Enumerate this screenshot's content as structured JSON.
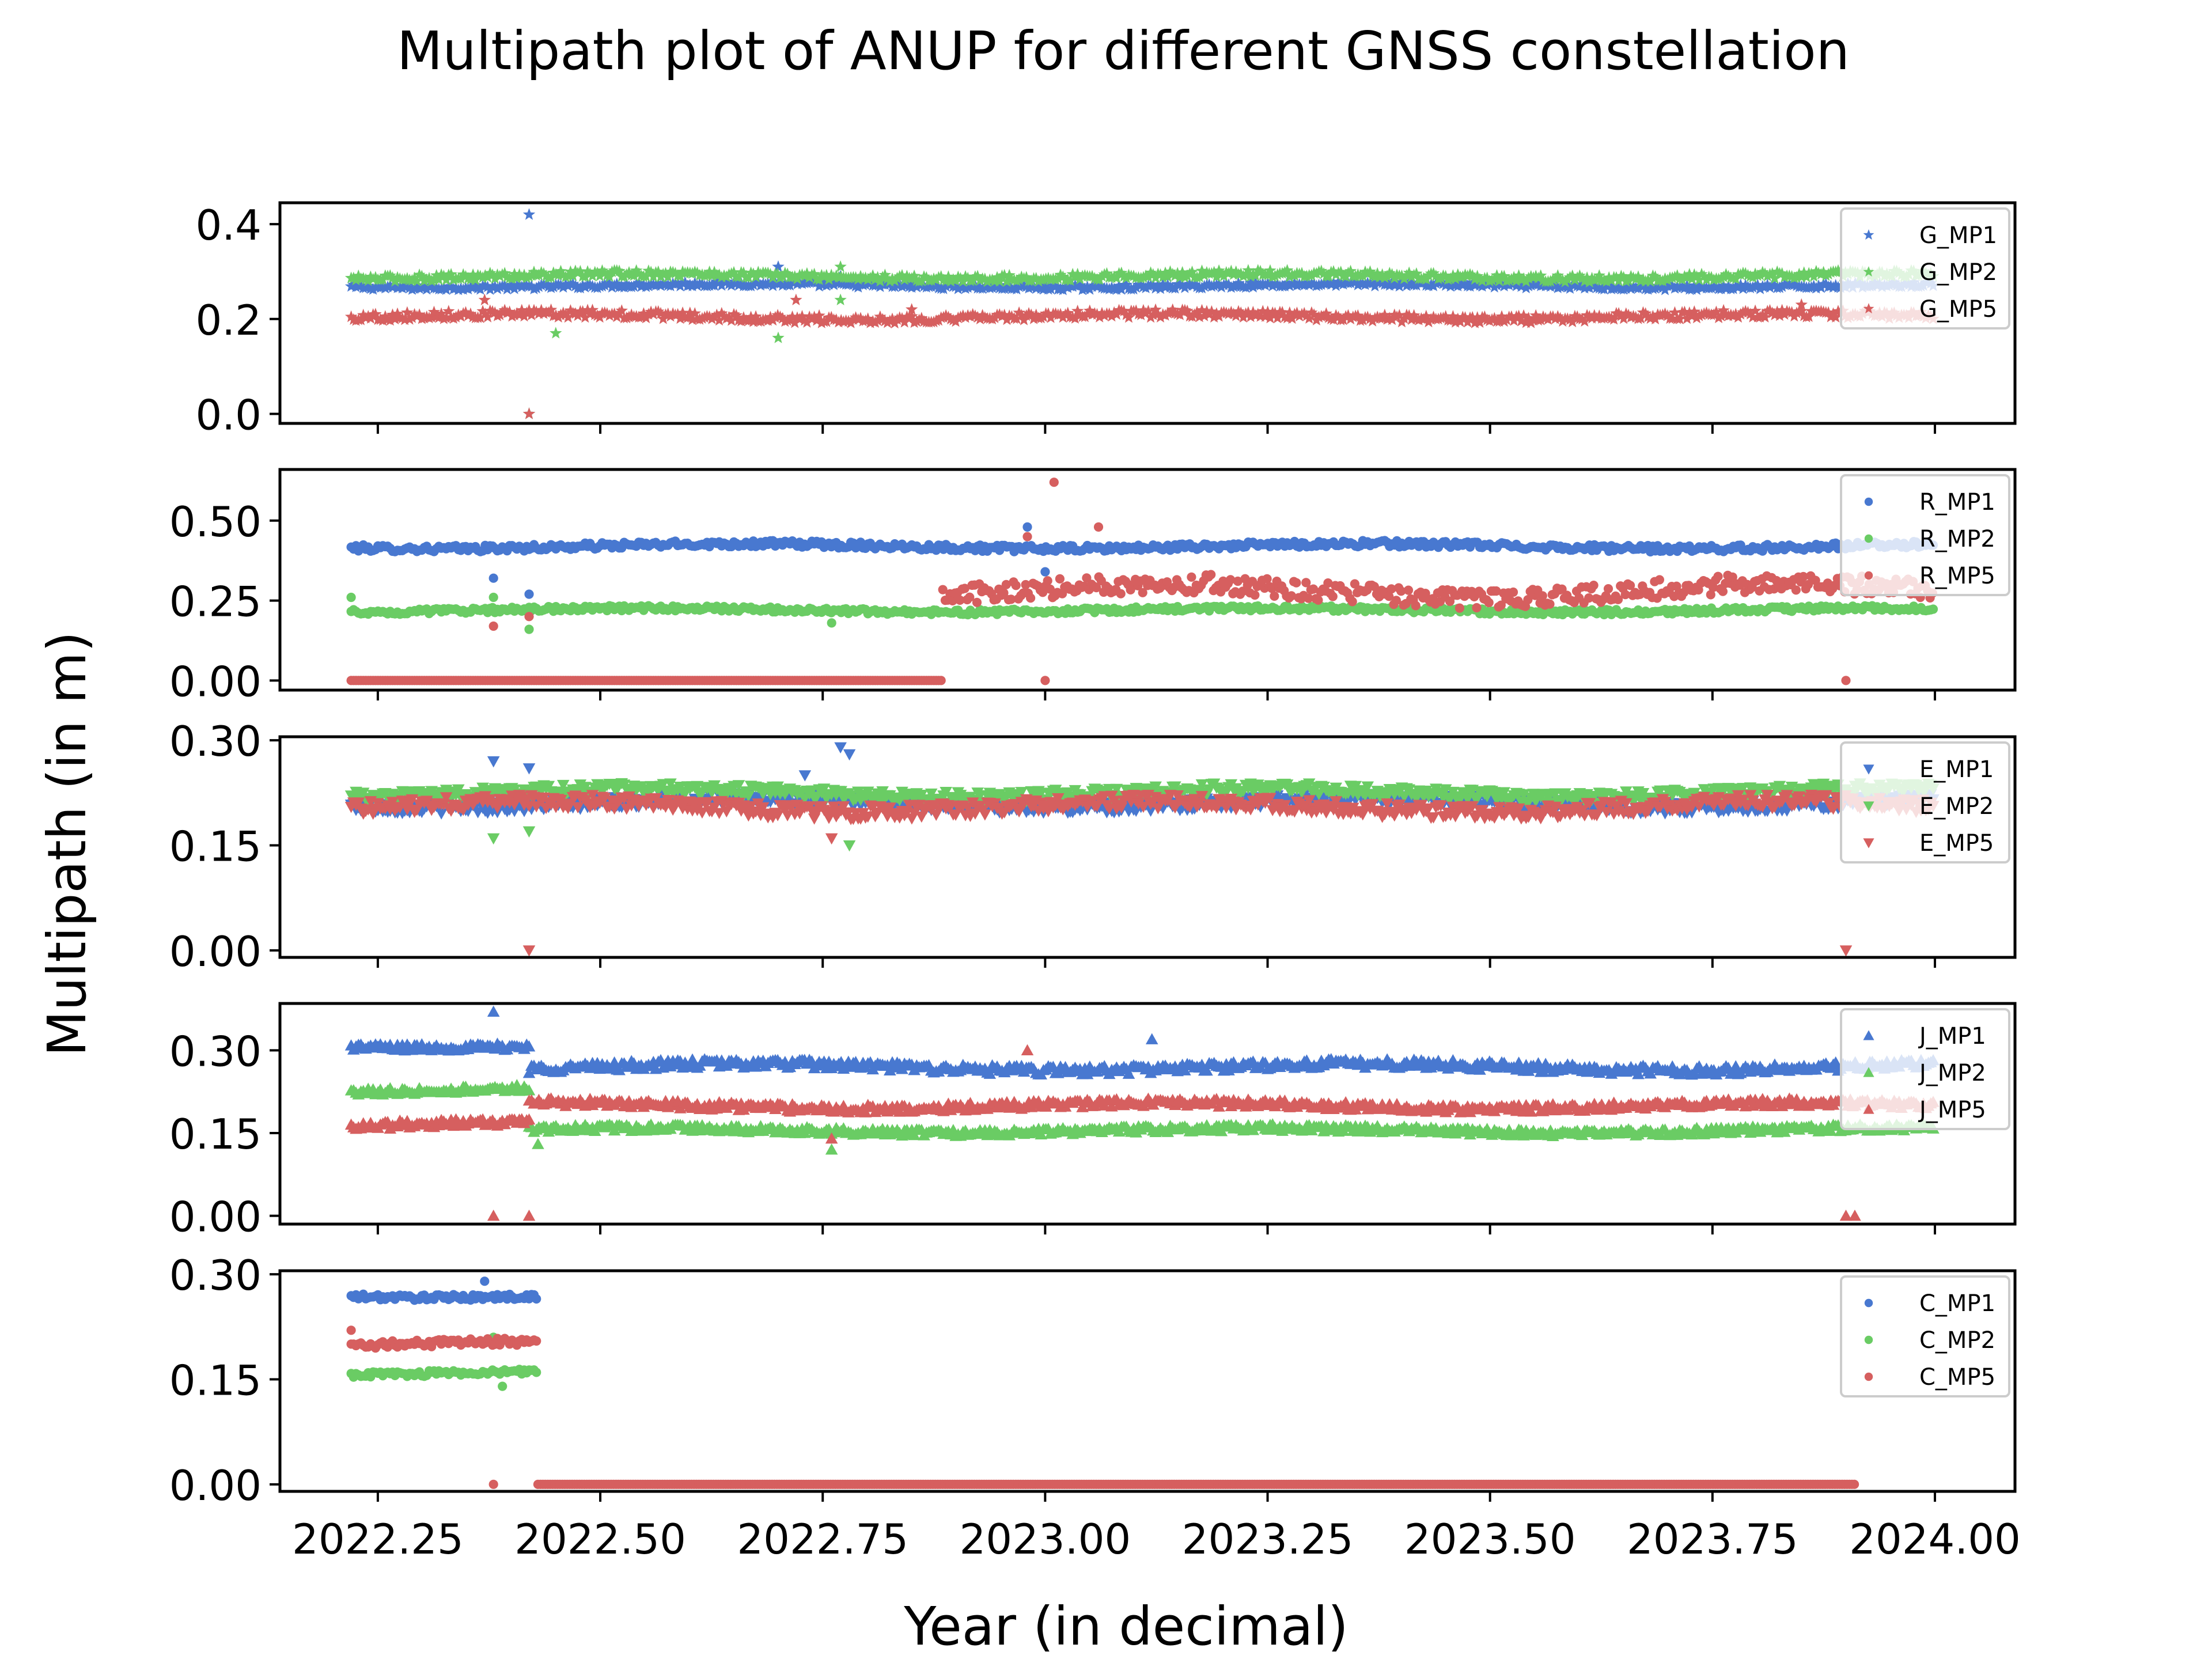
{
  "figure": {
    "title": "Multipath plot of ANUP for different GNSS constellation",
    "xlabel": "Year (in decimal)",
    "ylabel": "Multipath (in m)"
  },
  "colors": {
    "MP1": "#4878d0",
    "MP2": "#6acc64",
    "MP5": "#d65f5f"
  },
  "chart_data": [
    {
      "type": "scatter",
      "constellation": "G",
      "marker": "star",
      "xlim": [
        2022.14,
        2024.09
      ],
      "ylim": [
        -0.02,
        0.445
      ],
      "yticks": [
        0.0,
        0.2,
        0.4
      ],
      "ytick_labels": [
        "0.0",
        "0.2",
        "0.4"
      ],
      "legend_position": "upper-right",
      "series": [
        {
          "name": "G_MP1",
          "color_key": "MP1",
          "x_start": 2022.22,
          "x_end": 2024.0,
          "base": 0.27,
          "noise": 0.005,
          "gaps": [],
          "outliers": [
            [
              2022.42,
              0.42
            ],
            [
              2022.7,
              0.31
            ],
            [
              2022.77,
              0.29
            ],
            [
              2022.42,
              0.0
            ]
          ]
        },
        {
          "name": "G_MP2",
          "color_key": "MP2",
          "x_start": 2022.22,
          "x_end": 2024.0,
          "base": 0.29,
          "noise": 0.007,
          "gaps": [],
          "outliers": [
            [
              2022.45,
              0.17
            ],
            [
              2022.7,
              0.16
            ],
            [
              2022.77,
              0.24
            ],
            [
              2022.77,
              0.31
            ],
            [
              2022.42,
              0.0
            ]
          ]
        },
        {
          "name": "G_MP5",
          "color_key": "MP5",
          "x_start": 2022.22,
          "x_end": 2024.0,
          "base": 0.205,
          "noise": 0.008,
          "gaps": [],
          "outliers": [
            [
              2022.37,
              0.24
            ],
            [
              2022.42,
              0.0
            ],
            [
              2022.72,
              0.24
            ],
            [
              2022.85,
              0.22
            ],
            [
              2023.85,
              0.23
            ]
          ]
        }
      ]
    },
    {
      "type": "scatter",
      "constellation": "R",
      "marker": "circle",
      "xlim": [
        2022.14,
        2024.09
      ],
      "ylim": [
        -0.03,
        0.66
      ],
      "yticks": [
        0.0,
        0.25,
        0.5
      ],
      "ytick_labels": [
        "0.00",
        "0.25",
        "0.50"
      ],
      "legend_position": "upper-right",
      "series": [
        {
          "name": "R_MP1",
          "color_key": "MP1",
          "x_start": 2022.22,
          "x_end": 2024.0,
          "base": 0.42,
          "noise": 0.01,
          "gaps": [],
          "outliers": [
            [
              2022.38,
              0.32
            ],
            [
              2022.42,
              0.27
            ],
            [
              2023.0,
              0.34
            ],
            [
              2022.98,
              0.48
            ]
          ]
        },
        {
          "name": "R_MP2",
          "color_key": "MP2",
          "x_start": 2022.22,
          "x_end": 2024.0,
          "base": 0.22,
          "noise": 0.008,
          "gaps": [],
          "outliers": [
            [
              2022.22,
              0.26
            ],
            [
              2022.42,
              0.16
            ],
            [
              2022.38,
              0.26
            ],
            [
              2022.76,
              0.18
            ]
          ]
        },
        {
          "name": "R_MP5",
          "color_key": "MP5",
          "x_start": 2022.22,
          "x_end": 2024.0,
          "base": 0.0,
          "noise": 0.0,
          "gaps": [],
          "segments": [
            {
              "x_start": 2022.22,
              "x_end": 2022.885,
              "base": 0.0,
              "noise": 0.0
            },
            {
              "x_start": 2022.885,
              "x_end": 2024.0,
              "base": 0.28,
              "noise": 0.03
            }
          ],
          "outliers": [
            [
              2023.01,
              0.62
            ],
            [
              2022.98,
              0.45
            ],
            [
              2023.06,
              0.48
            ],
            [
              2023.0,
              0.0
            ],
            [
              2023.9,
              0.0
            ],
            [
              2022.38,
              0.17
            ],
            [
              2022.42,
              0.2
            ]
          ]
        }
      ]
    },
    {
      "type": "scatter",
      "constellation": "E",
      "marker": "triangle-down",
      "xlim": [
        2022.14,
        2024.09
      ],
      "ylim": [
        -0.01,
        0.305
      ],
      "yticks": [
        0.0,
        0.15,
        0.3
      ],
      "ytick_labels": [
        "0.00",
        "0.15",
        "0.30"
      ],
      "legend_position": "upper-right",
      "series": [
        {
          "name": "E_MP1",
          "color_key": "MP1",
          "x_start": 2022.22,
          "x_end": 2024.0,
          "base": 0.21,
          "noise": 0.008,
          "gaps": [],
          "outliers": [
            [
              2022.38,
              0.27
            ],
            [
              2022.42,
              0.26
            ],
            [
              2022.77,
              0.29
            ],
            [
              2022.78,
              0.28
            ],
            [
              2022.73,
              0.25
            ]
          ]
        },
        {
          "name": "E_MP2",
          "color_key": "MP2",
          "x_start": 2022.22,
          "x_end": 2024.0,
          "base": 0.225,
          "noise": 0.008,
          "gaps": [],
          "outliers": [
            [
              2022.38,
              0.16
            ],
            [
              2022.42,
              0.17
            ],
            [
              2022.78,
              0.15
            ]
          ]
        },
        {
          "name": "E_MP5",
          "color_key": "MP5",
          "x_start": 2022.22,
          "x_end": 2024.0,
          "base": 0.205,
          "noise": 0.01,
          "gaps": [],
          "outliers": [
            [
              2022.42,
              0.0
            ],
            [
              2023.9,
              0.0
            ],
            [
              2022.76,
              0.16
            ]
          ]
        }
      ]
    },
    {
      "type": "scatter",
      "constellation": "J",
      "marker": "triangle-up",
      "xlim": [
        2022.14,
        2024.09
      ],
      "ylim": [
        -0.015,
        0.385
      ],
      "yticks": [
        0.0,
        0.15,
        0.3
      ],
      "ytick_labels": [
        "0.00",
        "0.15",
        "0.30"
      ],
      "legend_position": "upper-right",
      "series": [
        {
          "name": "J_MP1",
          "color_key": "MP1",
          "x_start": 2022.22,
          "x_end": 2024.0,
          "base": 0.27,
          "noise": 0.008,
          "gaps": [],
          "segments": [
            {
              "x_start": 2022.22,
              "x_end": 2022.42,
              "base": 0.31,
              "noise": 0.006
            },
            {
              "x_start": 2022.42,
              "x_end": 2024.0,
              "base": 0.27,
              "noise": 0.008
            }
          ],
          "outliers": [
            [
              2022.38,
              0.37
            ],
            [
              2023.12,
              0.32
            ]
          ]
        },
        {
          "name": "J_MP2",
          "color_key": "MP2",
          "x_start": 2022.22,
          "x_end": 2024.0,
          "base": 0.155,
          "noise": 0.006,
          "gaps": [],
          "segments": [
            {
              "x_start": 2022.22,
              "x_end": 2022.42,
              "base": 0.23,
              "noise": 0.006
            },
            {
              "x_start": 2022.42,
              "x_end": 2024.0,
              "base": 0.155,
              "noise": 0.006
            }
          ],
          "outliers": [
            [
              2022.43,
              0.13
            ],
            [
              2022.76,
              0.12
            ]
          ]
        },
        {
          "name": "J_MP5",
          "color_key": "MP5",
          "x_start": 2022.22,
          "x_end": 2024.0,
          "base": 0.2,
          "noise": 0.007,
          "gaps": [],
          "segments": [
            {
              "x_start": 2022.22,
              "x_end": 2022.42,
              "base": 0.165,
              "noise": 0.007
            },
            {
              "x_start": 2022.42,
              "x_end": 2024.0,
              "base": 0.2,
              "noise": 0.007
            }
          ],
          "outliers": [
            [
              2022.38,
              0.0
            ],
            [
              2022.42,
              0.0
            ],
            [
              2023.9,
              0.0
            ],
            [
              2023.91,
              0.0
            ],
            [
              2022.98,
              0.3
            ],
            [
              2022.76,
              0.14
            ]
          ]
        }
      ]
    },
    {
      "type": "scatter",
      "constellation": "C",
      "marker": "circle",
      "xlim": [
        2022.14,
        2024.09
      ],
      "ylim": [
        -0.01,
        0.305
      ],
      "yticks": [
        0.0,
        0.15,
        0.3
      ],
      "ytick_labels": [
        "0.00",
        "0.15",
        "0.30"
      ],
      "legend_position": "upper-right",
      "series": [
        {
          "name": "C_MP1",
          "color_key": "MP1",
          "x_start": 2022.22,
          "x_end": 2022.43,
          "base": 0.27,
          "noise": 0.004,
          "gaps": [],
          "outliers": [
            [
              2022.37,
              0.29
            ]
          ]
        },
        {
          "name": "C_MP2",
          "color_key": "MP2",
          "x_start": 2022.22,
          "x_end": 2022.43,
          "base": 0.16,
          "noise": 0.004,
          "gaps": [],
          "outliers": [
            [
              2022.39,
              0.14
            ],
            [
              2022.38,
              0.21
            ]
          ]
        },
        {
          "name": "C_MP5",
          "color_key": "MP5",
          "x_start": 2022.22,
          "x_end": 2024.0,
          "base": 0.2,
          "noise": 0.005,
          "gaps": [],
          "segments": [
            {
              "x_start": 2022.22,
              "x_end": 2022.43,
              "base": 0.2,
              "noise": 0.005
            },
            {
              "x_start": 2022.43,
              "x_end": 2023.91,
              "base": 0.0,
              "noise": 0.0
            }
          ],
          "outliers": [
            [
              2022.38,
              0.0
            ],
            [
              2022.22,
              0.22
            ]
          ]
        }
      ]
    }
  ],
  "xticks": [
    2022.25,
    2022.5,
    2022.75,
    2023.0,
    2023.25,
    2023.5,
    2023.75,
    2024.0
  ],
  "xtick_labels": [
    "2022.25",
    "2022.50",
    "2022.75",
    "2023.00",
    "2023.25",
    "2023.50",
    "2023.75",
    "2024.00"
  ]
}
